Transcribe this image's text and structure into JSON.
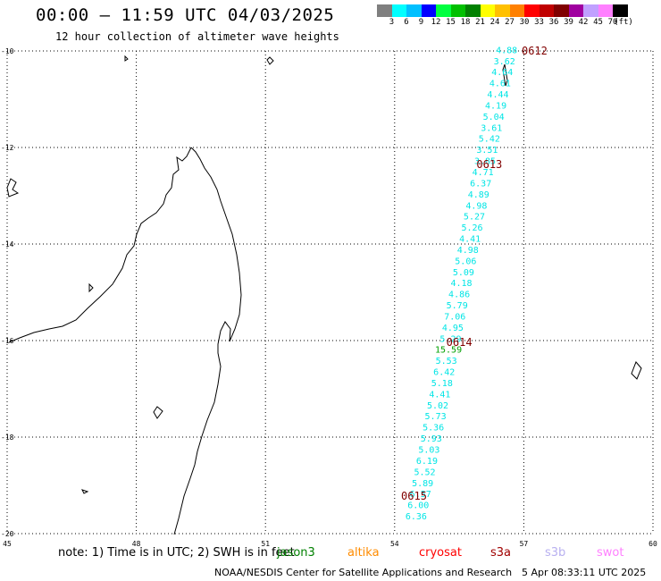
{
  "header": {
    "title": "00:00 – 11:59 UTC 04/03/2025",
    "subtitle": "12 hour collection of altimeter wave heights"
  },
  "colorbar": {
    "colors": [
      "#7f7f7f",
      "#00ffff",
      "#00c0ff",
      "#0000ff",
      "#00ff40",
      "#00c000",
      "#008000",
      "#ffff00",
      "#ffc000",
      "#ff8000",
      "#ff0000",
      "#c00000",
      "#800000",
      "#a000a0",
      "#c0a0ff",
      "#ff80ff",
      "#000000"
    ],
    "labels": [
      "3",
      "6",
      "9",
      "12",
      "15",
      "18",
      "21",
      "24",
      "27",
      "30",
      "33",
      "36",
      "39",
      "42",
      "45",
      "70",
      "(ft)"
    ]
  },
  "axes": {
    "lat_labels": [
      "-10",
      "-12",
      "-14",
      "-16",
      "-18",
      "-20"
    ],
    "lon_labels": [
      "45",
      "48",
      "51",
      "54",
      "57",
      "60"
    ],
    "lat_range": [
      -10,
      -20
    ],
    "lon_range": [
      45,
      60
    ]
  },
  "track": {
    "color": "#00e5e5",
    "highlight_color": "#00a000",
    "points": [
      {
        "lat": -9.97,
        "lon": 56.6,
        "v": "4.88"
      },
      {
        "lat": -10.2,
        "lon": 56.55,
        "v": "3.62"
      },
      {
        "lat": -10.43,
        "lon": 56.5,
        "v": "4.64"
      },
      {
        "lat": -10.66,
        "lon": 56.45,
        "v": "4.61"
      },
      {
        "lat": -10.89,
        "lon": 56.4,
        "v": "4.44"
      },
      {
        "lat": -11.12,
        "lon": 56.35,
        "v": "4.19"
      },
      {
        "lat": -11.35,
        "lon": 56.3,
        "v": "5.04"
      },
      {
        "lat": -11.58,
        "lon": 56.25,
        "v": "3.61"
      },
      {
        "lat": -11.81,
        "lon": 56.2,
        "v": "5.42"
      },
      {
        "lat": -12.04,
        "lon": 56.15,
        "v": "3.51"
      },
      {
        "lat": -12.27,
        "lon": 56.1,
        "v": "3.85"
      },
      {
        "lat": -12.5,
        "lon": 56.05,
        "v": "4.71"
      },
      {
        "lat": -12.73,
        "lon": 56.0,
        "v": "6.37"
      },
      {
        "lat": -12.96,
        "lon": 55.95,
        "v": "4.89"
      },
      {
        "lat": -13.19,
        "lon": 55.9,
        "v": "4.98"
      },
      {
        "lat": -13.42,
        "lon": 55.85,
        "v": "5.27"
      },
      {
        "lat": -13.65,
        "lon": 55.8,
        "v": "5.26"
      },
      {
        "lat": -13.88,
        "lon": 55.75,
        "v": "4.41"
      },
      {
        "lat": -14.11,
        "lon": 55.7,
        "v": "4.98"
      },
      {
        "lat": -14.34,
        "lon": 55.65,
        "v": "5.06"
      },
      {
        "lat": -14.57,
        "lon": 55.6,
        "v": "5.09"
      },
      {
        "lat": -14.8,
        "lon": 55.55,
        "v": "4.18"
      },
      {
        "lat": -15.03,
        "lon": 55.5,
        "v": "4.86"
      },
      {
        "lat": -15.26,
        "lon": 55.45,
        "v": "5.79"
      },
      {
        "lat": -15.49,
        "lon": 55.4,
        "v": "7.06"
      },
      {
        "lat": -15.72,
        "lon": 55.35,
        "v": "4.95"
      },
      {
        "lat": -15.95,
        "lon": 55.3,
        "v": "5.29"
      },
      {
        "lat": -16.18,
        "lon": 55.25,
        "v": "15.59",
        "highlight": true
      },
      {
        "lat": -16.41,
        "lon": 55.2,
        "v": "5.53"
      },
      {
        "lat": -16.64,
        "lon": 55.15,
        "v": "6.42"
      },
      {
        "lat": -16.87,
        "lon": 55.1,
        "v": "5.18"
      },
      {
        "lat": -17.1,
        "lon": 55.05,
        "v": "4.41"
      },
      {
        "lat": -17.33,
        "lon": 55.0,
        "v": "5.02"
      },
      {
        "lat": -17.56,
        "lon": 54.95,
        "v": "5.73"
      },
      {
        "lat": -17.79,
        "lon": 54.9,
        "v": "5.36"
      },
      {
        "lat": -18.02,
        "lon": 54.85,
        "v": "5.93"
      },
      {
        "lat": -18.25,
        "lon": 54.8,
        "v": "5.03"
      },
      {
        "lat": -18.48,
        "lon": 54.75,
        "v": "6.19"
      },
      {
        "lat": -18.71,
        "lon": 54.7,
        "v": "5.52"
      },
      {
        "lat": -18.94,
        "lon": 54.65,
        "v": "5.89"
      },
      {
        "lat": -19.17,
        "lon": 54.6,
        "v": "6.57"
      },
      {
        "lat": -19.4,
        "lon": 54.55,
        "v": "6.00"
      },
      {
        "lat": -19.63,
        "lon": 54.5,
        "v": "6.36"
      }
    ]
  },
  "time_labels": {
    "color": "#800000",
    "items": [
      {
        "lat": -10.0,
        "lon": 57.25,
        "text": "0612"
      },
      {
        "lat": -12.35,
        "lon": 56.2,
        "text": "0613"
      },
      {
        "lat": -16.04,
        "lon": 55.5,
        "text": "0614"
      },
      {
        "lat": -19.22,
        "lon": 54.45,
        "text": "0615"
      }
    ]
  },
  "footer": {
    "note": "note: 1) Time is in UTC; 2) SWH is in feet",
    "satellites": [
      {
        "name": "jason3",
        "color": "#008000"
      },
      {
        "name": "altika",
        "color": "#ff8c00"
      },
      {
        "name": "cryosat",
        "color": "#ff0000"
      },
      {
        "name": "s3a",
        "color": "#a00000"
      },
      {
        "name": "s3b",
        "color": "#b8b0f0"
      },
      {
        "name": "swot",
        "color": "#ff80ff"
      }
    ],
    "credit": "NOAA/NESDIS Center for Satellite Applications and Research",
    "timestamp": "5 Apr 08:33:11 UTC 2025"
  }
}
